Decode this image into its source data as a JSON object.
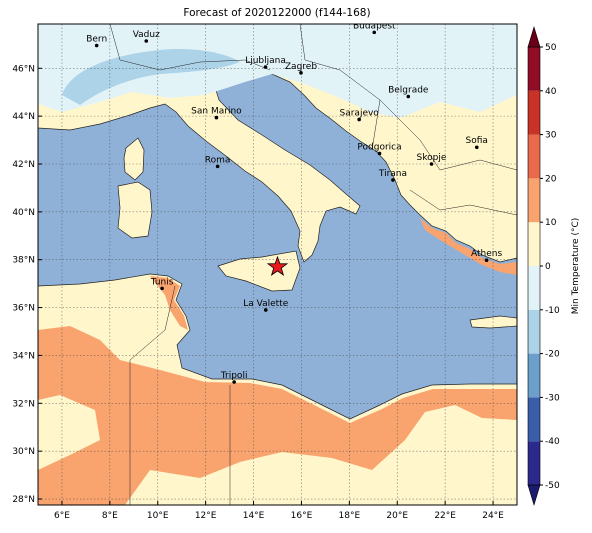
{
  "title": "Forecast of 2020122000 (f144-168)",
  "map": {
    "xlim": [
      5,
      25
    ],
    "ylim": [
      27.75,
      47.85
    ],
    "xticks": [
      {
        "value": 6,
        "label": "6°E"
      },
      {
        "value": 8,
        "label": "8°E"
      },
      {
        "value": 10,
        "label": "10°E"
      },
      {
        "value": 12,
        "label": "12°E"
      },
      {
        "value": 14,
        "label": "14°E"
      },
      {
        "value": 16,
        "label": "16°E"
      },
      {
        "value": 18,
        "label": "18°E"
      },
      {
        "value": 20,
        "label": "20°E"
      },
      {
        "value": 22,
        "label": "22°E"
      },
      {
        "value": 24,
        "label": "24°E"
      }
    ],
    "yticks": [
      {
        "value": 28,
        "label": "28°N"
      },
      {
        "value": 30,
        "label": "30°N"
      },
      {
        "value": 32,
        "label": "32°N"
      },
      {
        "value": 34,
        "label": "34°N"
      },
      {
        "value": 36,
        "label": "36°N"
      },
      {
        "value": 38,
        "label": "38°N"
      },
      {
        "value": 40,
        "label": "40°N"
      },
      {
        "value": 42,
        "label": "42°N"
      },
      {
        "value": 44,
        "label": "44°N"
      },
      {
        "value": 46,
        "label": "46°N"
      }
    ],
    "grid": true,
    "cities": [
      {
        "name": "Bern",
        "lon": 7.45,
        "lat": 46.95
      },
      {
        "name": "Vaduz",
        "lon": 9.52,
        "lat": 47.14
      },
      {
        "name": "Budapest",
        "lon": 19.04,
        "lat": 47.5
      },
      {
        "name": "Ljubljana",
        "lon": 14.5,
        "lat": 46.05
      },
      {
        "name": "Zagreb",
        "lon": 15.98,
        "lat": 45.81
      },
      {
        "name": "Belgrade",
        "lon": 20.46,
        "lat": 44.82
      },
      {
        "name": "San Marino",
        "lon": 12.45,
        "lat": 43.94
      },
      {
        "name": "Sarajevo",
        "lon": 18.41,
        "lat": 43.86
      },
      {
        "name": "Sofia",
        "lon": 23.32,
        "lat": 42.7
      },
      {
        "name": "Podgorica",
        "lon": 19.26,
        "lat": 42.44
      },
      {
        "name": "Skopje",
        "lon": 21.43,
        "lat": 42.0
      },
      {
        "name": "Roma",
        "lon": 12.5,
        "lat": 41.9
      },
      {
        "name": "Tirana",
        "lon": 19.82,
        "lat": 41.33
      },
      {
        "name": "Athens",
        "lon": 23.73,
        "lat": 37.98
      },
      {
        "name": "Tunis",
        "lon": 10.18,
        "lat": 36.8
      },
      {
        "name": "La Valette",
        "lon": 14.51,
        "lat": 35.9
      },
      {
        "name": "Tripoli",
        "lon": 13.19,
        "lat": 32.89
      }
    ],
    "marker": {
      "lon": 15.0,
      "lat": 37.7,
      "color": "#e41a1c"
    }
  },
  "colorbar": {
    "label": "Min Temperature (°C)",
    "lim": [
      -50,
      50
    ],
    "ticks": [
      -50,
      -40,
      -30,
      -20,
      -10,
      0,
      10,
      20,
      30,
      40,
      50
    ],
    "colors": [
      "#2b2a8c",
      "#3a5fa8",
      "#6c9fcc",
      "#acd3e8",
      "#e2f3f8",
      "#fff6cc",
      "#f9a36e",
      "#e96a4a",
      "#c93227",
      "#900d25"
    ],
    "under": "#1a1a70",
    "over": "#6a0018"
  }
}
